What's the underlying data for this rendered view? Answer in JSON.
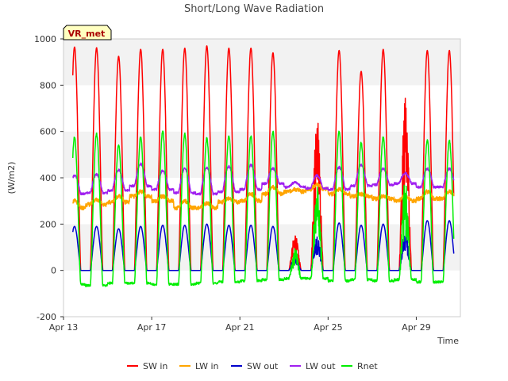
{
  "chart_data": {
    "type": "line",
    "title": "Short/Long Wave Radiation",
    "xlabel": "Time",
    "ylabel": "(W/m2)",
    "site_badge": "VR_met",
    "xlim_days": [
      13,
      31
    ],
    "ylim": [
      -200,
      1000
    ],
    "y_ticks": [
      -200,
      0,
      200,
      400,
      600,
      800,
      1000
    ],
    "x_ticks": [
      {
        "day": 13,
        "label": "Apr 13"
      },
      {
        "day": 17,
        "label": "Apr 17"
      },
      {
        "day": 21,
        "label": "Apr 21"
      },
      {
        "day": 25,
        "label": "Apr 25"
      },
      {
        "day": 29,
        "label": "Apr 29"
      }
    ],
    "grid": "horizontal bands",
    "legend_position": "bottom",
    "series_meta": [
      {
        "key": "sw_in",
        "name": "SW in",
        "color": "#ff0000"
      },
      {
        "key": "lw_in",
        "name": "LW in",
        "color": "#ffa500"
      },
      {
        "key": "sw_out",
        "name": "SW out",
        "color": "#0000cc"
      },
      {
        "key": "lw_out",
        "name": "LW out",
        "color": "#a020f0"
      },
      {
        "key": "rnet",
        "name": "Rnet",
        "color": "#00ee00"
      }
    ],
    "daily": {
      "days": [
        13.5,
        14.5,
        15.5,
        16.5,
        17.5,
        18.5,
        19.5,
        20.5,
        21.5,
        22.5,
        23.5,
        24.5,
        25.5,
        26.5,
        27.5,
        28.5,
        29.5
      ],
      "sw_in_peak": [
        965,
        962,
        925,
        955,
        955,
        960,
        970,
        960,
        960,
        940,
        160,
        670,
        950,
        860,
        955,
        750,
        950
      ],
      "sw_out_peak": [
        190,
        190,
        180,
        190,
        195,
        195,
        200,
        195,
        195,
        190,
        60,
        150,
        205,
        195,
        200,
        180,
        215
      ],
      "rnet_peak": [
        575,
        590,
        540,
        575,
        600,
        590,
        570,
        580,
        580,
        600,
        100,
        400,
        600,
        550,
        575,
        400,
        560
      ],
      "rnet_night": [
        -60,
        -65,
        -55,
        -55,
        -60,
        -60,
        -55,
        -50,
        -45,
        -40,
        -35,
        -35,
        -45,
        -40,
        -45,
        -40,
        -50
      ],
      "lw_in_night": [
        270,
        285,
        295,
        320,
        300,
        270,
        270,
        295,
        300,
        330,
        340,
        350,
        330,
        320,
        310,
        300,
        310
      ],
      "lw_in_day": [
        300,
        305,
        320,
        340,
        320,
        300,
        290,
        310,
        330,
        360,
        350,
        370,
        350,
        330,
        320,
        320,
        340
      ],
      "lw_out_night": [
        330,
        335,
        345,
        365,
        350,
        335,
        330,
        340,
        350,
        375,
        360,
        355,
        350,
        365,
        370,
        375,
        360
      ],
      "lw_out_peak": [
        410,
        415,
        435,
        460,
        430,
        440,
        445,
        450,
        455,
        440,
        380,
        410,
        445,
        455,
        440,
        420,
        440
      ]
    },
    "end_day": 30.7
  }
}
